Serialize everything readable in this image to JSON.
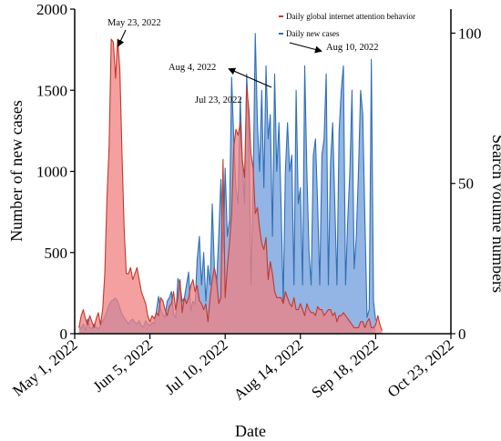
{
  "chart_data": {
    "type": "area",
    "xlabel": "Date",
    "ylabel_left": "Number of new cases",
    "ylabel_right": "Search volume numbers",
    "x_range": [
      "2022-05-01",
      "2022-10-23"
    ],
    "x_ticks": [
      "May 1, 2022",
      "Jun 5, 2022",
      "Jul 10, 2022",
      "Aug 14, 2022",
      "Sep 18, 2022",
      "Oct 23, 2022"
    ],
    "x_tick_dates": [
      "2022-05-01",
      "2022-06-05",
      "2022-07-10",
      "2022-08-14",
      "2022-09-18",
      "2022-10-23"
    ],
    "y_left_ticks": [
      "0",
      "500",
      "1000",
      "1500",
      "2000"
    ],
    "y_left_range": [
      0,
      2000
    ],
    "y_right_ticks": [
      "0",
      "50",
      "100"
    ],
    "y_right_range": [
      0,
      108
    ],
    "legend_placement": "top-right",
    "series": [
      {
        "name": "Daily global internet attention behavior",
        "axis": "right",
        "color": "#c0392b",
        "fill": "#f08080",
        "start_date": "2022-05-03",
        "values": [
          2,
          6,
          8,
          5,
          3,
          6,
          4,
          2,
          5,
          7,
          3,
          8,
          20,
          45,
          62,
          98,
          97,
          85,
          98,
          88,
          60,
          35,
          20,
          20,
          22,
          18,
          20,
          22,
          18,
          14,
          12,
          10,
          6,
          4,
          6,
          5,
          7,
          6,
          12,
          11,
          8,
          6,
          9,
          10,
          14,
          8,
          12,
          18,
          7,
          12,
          10,
          12,
          16,
          18,
          14,
          16,
          11,
          10,
          8,
          10,
          4,
          12,
          18,
          22,
          18,
          10,
          12,
          58,
          12,
          22,
          30,
          40,
          62,
          68,
          66,
          70,
          58,
          52,
          82,
          75,
          60,
          55,
          40,
          42,
          35,
          30,
          28,
          32,
          18,
          24,
          20,
          14,
          12,
          12,
          12,
          10,
          14,
          12,
          10,
          9,
          12,
          8,
          8,
          10,
          8,
          6,
          10,
          8,
          7,
          7,
          6,
          9,
          8,
          8,
          6,
          7,
          8,
          8,
          6,
          7,
          4,
          6,
          6,
          7,
          6,
          5,
          4,
          3,
          2,
          2,
          2,
          4,
          4,
          2,
          4,
          5,
          2,
          2,
          3,
          6,
          3,
          1
        ]
      },
      {
        "name": "Daily new cases",
        "axis": "left",
        "color": "#2e6fb5",
        "fill": "#7fa8e0",
        "start_date": "2022-05-03",
        "values": [
          50,
          30,
          60,
          20,
          90,
          40,
          30,
          60,
          40,
          30,
          50,
          80,
          100,
          140,
          180,
          200,
          210,
          220,
          200,
          160,
          120,
          100,
          80,
          60,
          80,
          90,
          70,
          60,
          80,
          50,
          40,
          80,
          60,
          50,
          70,
          60,
          140,
          230,
          150,
          120,
          100,
          200,
          220,
          260,
          120,
          100,
          340,
          300,
          200,
          220,
          300,
          380,
          140,
          200,
          180,
          460,
          600,
          300,
          500,
          200,
          420,
          300,
          800,
          400,
          300,
          600,
          950,
          500,
          1020,
          600,
          700,
          1580,
          1200,
          900,
          800,
          1450,
          1050,
          800,
          1600,
          1280,
          300,
          900,
          1850,
          1300,
          1000,
          1500,
          900,
          1650,
          1200,
          1350,
          600,
          1600,
          1000,
          1300,
          800,
          200,
          1000,
          1300,
          1000,
          1100,
          300,
          1500,
          800,
          900,
          300,
          1650,
          1000,
          500,
          300,
          1100,
          1200,
          800,
          300,
          1100,
          1200,
          1600,
          300,
          1050,
          1300,
          800,
          300,
          1250,
          1500,
          1650,
          300,
          700,
          1000,
          1500,
          400,
          600,
          1000,
          1500,
          1350,
          700,
          100,
          150,
          1690,
          200,
          80
        ]
      }
    ],
    "annotations": [
      {
        "text": "May 23, 2022"
      },
      {
        "text": "Aug 4, 2022"
      },
      {
        "text": "Jul 23, 2022"
      },
      {
        "text": "Aug 10, 2022"
      }
    ]
  }
}
